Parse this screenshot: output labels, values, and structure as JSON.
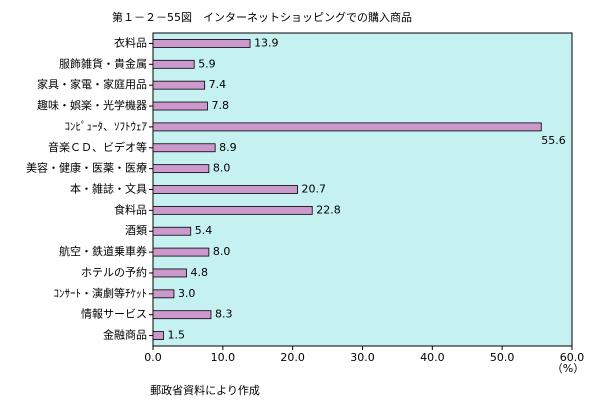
{
  "chart_data": {
    "type": "bar",
    "orientation": "horizontal",
    "title": "第１－２－55図　インターネットショッピングでの購入商品",
    "categories": [
      "衣料品",
      "服飾雑貨・貴金属",
      "家具・家電・家庭用品",
      "趣味・娯楽・光学機器",
      "ｺﾝﾋﾟｭｰﾀ、ｿﾌﾄｳｪｱ",
      "音楽ＣＤ、ビデオ等",
      "美容・健康・医薬・医療",
      "本・雑誌・文具",
      "食料品",
      "酒類",
      "航空・鉄道乗車券",
      "ホテルの予約",
      "ｺﾝｻｰﾄ・演劇等ﾁｹｯﾄ",
      "情報サービス",
      "金融商品"
    ],
    "values": [
      13.9,
      5.9,
      7.4,
      7.8,
      55.6,
      8.9,
      8.0,
      20.7,
      22.8,
      5.4,
      8.0,
      4.8,
      3.0,
      8.3,
      1.5
    ],
    "value_labels": [
      "13.9",
      "5.9",
      "7.4",
      "7.8",
      "55.6",
      "8.9",
      "8.0",
      "20.7",
      "22.8",
      "5.4",
      "8.0",
      "4.8",
      "3.0",
      "8.3",
      "1.5"
    ],
    "color": "#cc99cc",
    "xlim": [
      0,
      60
    ],
    "xticks": [
      {
        "value": 0,
        "label": "0.0"
      },
      {
        "value": 10,
        "label": "10.0"
      },
      {
        "value": 20,
        "label": "20.0"
      },
      {
        "value": 30,
        "label": "30.0"
      },
      {
        "value": 40,
        "label": "40.0"
      },
      {
        "value": 50,
        "label": "50.0"
      },
      {
        "value": 60,
        "label": "60.0"
      }
    ],
    "unit_label": "（%）",
    "source": "郵政省資料により作成"
  }
}
